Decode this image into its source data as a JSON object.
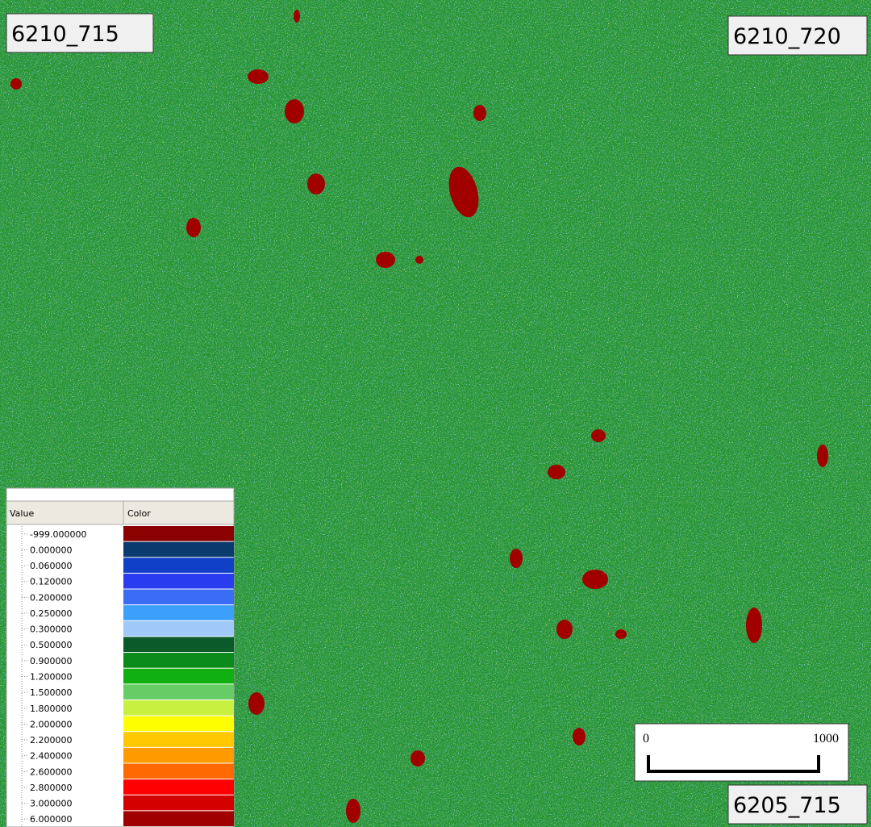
{
  "map_labels": {
    "top_left": "6210_715",
    "top_right": "6210_720",
    "bottom_right": "6205_715"
  },
  "legend": {
    "headers": [
      "Value",
      "Color"
    ],
    "rows": [
      {
        "value": "-999.000000",
        "color": "#8b0000"
      },
      {
        "value": "0.000000",
        "color": "#0b3a6e"
      },
      {
        "value": "0.060000",
        "color": "#1040c8"
      },
      {
        "value": "0.120000",
        "color": "#2a3cf0"
      },
      {
        "value": "0.200000",
        "color": "#3a6cf6"
      },
      {
        "value": "0.250000",
        "color": "#3ca0fa"
      },
      {
        "value": "0.300000",
        "color": "#a0c8f8"
      },
      {
        "value": "0.500000",
        "color": "#0a5a2a"
      },
      {
        "value": "0.900000",
        "color": "#0a8a1a"
      },
      {
        "value": "1.200000",
        "color": "#10b010"
      },
      {
        "value": "1.500000",
        "color": "#66cc66"
      },
      {
        "value": "1.800000",
        "color": "#c8f040"
      },
      {
        "value": "2.000000",
        "color": "#fefe00"
      },
      {
        "value": "2.200000",
        "color": "#ffc800"
      },
      {
        "value": "2.400000",
        "color": "#ff9a00"
      },
      {
        "value": "2.600000",
        "color": "#ff6a00"
      },
      {
        "value": "2.800000",
        "color": "#ff0000"
      },
      {
        "value": "3.000000",
        "color": "#d40000"
      },
      {
        "value": "6.000000",
        "color": "#a00000"
      }
    ]
  },
  "scale_bar": {
    "start": "0",
    "end": "1000"
  }
}
